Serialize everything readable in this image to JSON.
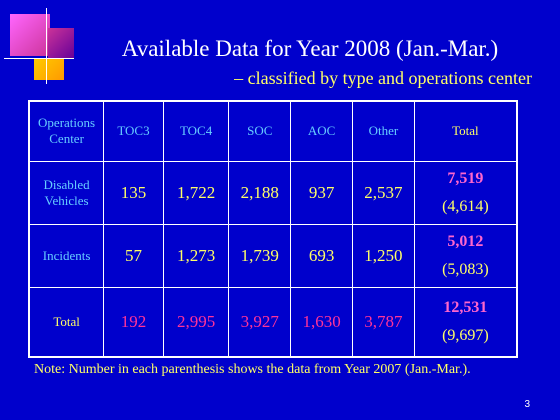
{
  "header": {
    "title": "Available Data for Year 2008 (Jan.-Mar.)",
    "subtitle": "– classified by type and operations center"
  },
  "table": {
    "columns": [
      "Operations Center",
      "TOC3",
      "TOC4",
      "SOC",
      "AOC",
      "Other",
      "Total"
    ],
    "rows": [
      {
        "label": "Disabled Vehicles",
        "values": [
          "135",
          "1,722",
          "2,188",
          "937",
          "2,537"
        ],
        "total": "7,519",
        "total_2007": "(4,614)"
      },
      {
        "label": "Incidents",
        "values": [
          "57",
          "1,273",
          "1,739",
          "693",
          "1,250"
        ],
        "total": "5,012",
        "total_2007": "(5,083)"
      },
      {
        "label": "Total",
        "values": [
          "192",
          "2,995",
          "3,927",
          "1,630",
          "3,787"
        ],
        "total": "12,531",
        "total_2007": "(9,697)"
      }
    ]
  },
  "note": "Note: Number in each parenthesis shows the data from Year 2007 (Jan.-Mar.).",
  "page_number": "3"
}
